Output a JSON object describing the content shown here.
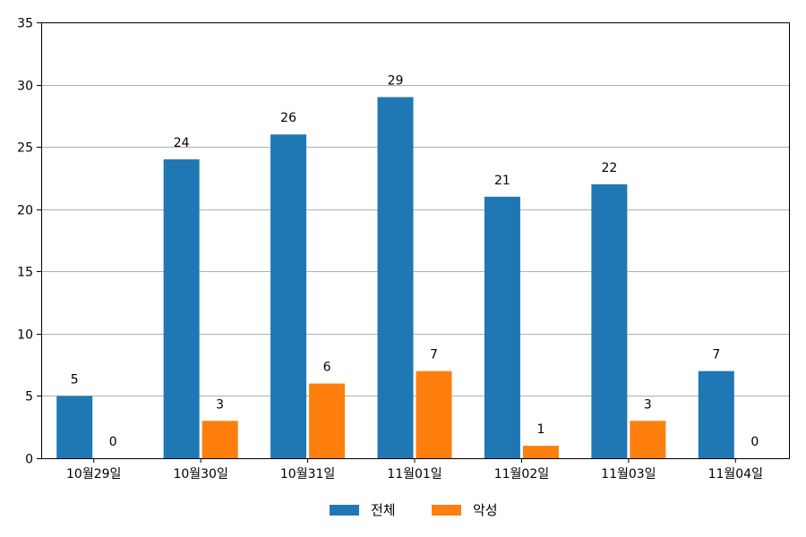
{
  "chart_data": {
    "type": "bar",
    "title": "",
    "xlabel": "",
    "ylabel": "",
    "categories": [
      "10월29일",
      "10월30일",
      "10월31일",
      "11월01일",
      "11월02일",
      "11월03일",
      "11월04일"
    ],
    "series": [
      {
        "name": "전체",
        "color": "#1f77b4",
        "values": [
          5,
          24,
          26,
          29,
          21,
          22,
          7
        ]
      },
      {
        "name": "악성",
        "color": "#ff7f0e",
        "values": [
          0,
          3,
          6,
          7,
          1,
          3,
          0
        ]
      }
    ],
    "ylim": [
      0,
      35
    ],
    "yticks": [
      0,
      5,
      10,
      15,
      20,
      25,
      30,
      35
    ],
    "grid": "y",
    "legend": "bottom-center",
    "data_labels": true
  }
}
